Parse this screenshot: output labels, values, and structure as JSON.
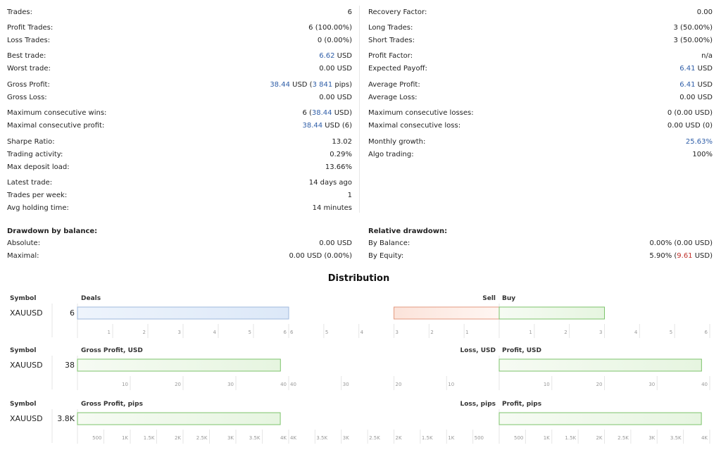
{
  "stats_left": [
    {
      "label": "Trades:",
      "value": [
        {
          "t": "6"
        }
      ]
    },
    {
      "label": "Profit Trades:",
      "value": [
        {
          "t": "6 (100.00%)"
        }
      ]
    },
    {
      "label": "Loss Trades:",
      "value": [
        {
          "t": "0 (0.00%)"
        }
      ]
    },
    {
      "label": "Best trade:",
      "value": [
        {
          "t": "6.62",
          "c": "blue"
        },
        {
          "t": " USD"
        }
      ]
    },
    {
      "label": "Worst trade:",
      "value": [
        {
          "t": "0.00 USD"
        }
      ]
    },
    {
      "label": "Gross Profit:",
      "value": [
        {
          "t": "38.44",
          "c": "blue"
        },
        {
          "t": " USD ("
        },
        {
          "t": "3 841",
          "c": "blue"
        },
        {
          "t": " pips)"
        }
      ]
    },
    {
      "label": "Gross Loss:",
      "value": [
        {
          "t": "0.00 USD"
        }
      ]
    },
    {
      "label": "Maximum consecutive wins:",
      "value": [
        {
          "t": "6 ("
        },
        {
          "t": "38.44",
          "c": "blue"
        },
        {
          "t": " USD)"
        }
      ]
    },
    {
      "label": "Maximal consecutive profit:",
      "value": [
        {
          "t": "38.44",
          "c": "blue"
        },
        {
          "t": " USD (6)"
        }
      ]
    },
    {
      "label": "Sharpe Ratio:",
      "value": [
        {
          "t": "13.02"
        }
      ]
    },
    {
      "label": "Trading activity:",
      "value": [
        {
          "t": "0.29%"
        }
      ]
    },
    {
      "label": "Max deposit load:",
      "value": [
        {
          "t": "13.66%"
        }
      ]
    },
    {
      "label": "Latest trade:",
      "value": [
        {
          "t": "14 days ago"
        }
      ]
    },
    {
      "label": "Trades per week:",
      "value": [
        {
          "t": "1"
        }
      ]
    },
    {
      "label": "Avg holding time:",
      "value": [
        {
          "t": "14 minutes"
        }
      ]
    }
  ],
  "stats_right": [
    {
      "label": "Recovery Factor:",
      "value": [
        {
          "t": "0.00"
        }
      ]
    },
    {
      "label": "Long Trades:",
      "value": [
        {
          "t": "3 (50.00%)"
        }
      ]
    },
    {
      "label": "Short Trades:",
      "value": [
        {
          "t": "3 (50.00%)"
        }
      ]
    },
    {
      "label": "Profit Factor:",
      "value": [
        {
          "t": "n/a"
        }
      ]
    },
    {
      "label": "Expected Payoff:",
      "value": [
        {
          "t": "6.41",
          "c": "blue"
        },
        {
          "t": " USD"
        }
      ]
    },
    {
      "label": "Average Profit:",
      "value": [
        {
          "t": "6.41",
          "c": "blue"
        },
        {
          "t": " USD"
        }
      ]
    },
    {
      "label": "Average Loss:",
      "value": [
        {
          "t": "0.00 USD"
        }
      ]
    },
    {
      "label": "Maximum consecutive losses:",
      "value": [
        {
          "t": "0 (0.00 USD)"
        }
      ]
    },
    {
      "label": "Maximal consecutive loss:",
      "value": [
        {
          "t": "0.00 USD (0)"
        }
      ]
    },
    {
      "label": "Monthly growth:",
      "value": [
        {
          "t": "25.63%",
          "c": "blue"
        }
      ]
    },
    {
      "label": "Algo trading:",
      "value": [
        {
          "t": "100%"
        }
      ]
    }
  ],
  "drawdown_left": {
    "title": "Drawdown by balance:",
    "rows": [
      {
        "label": "Absolute:",
        "value": [
          {
            "t": "0.00 USD"
          }
        ]
      },
      {
        "label": "Maximal:",
        "value": [
          {
            "t": "0.00 USD (0.00%)"
          }
        ]
      }
    ]
  },
  "drawdown_right": {
    "title": "Relative drawdown:",
    "rows": [
      {
        "label": "By Balance:",
        "value": [
          {
            "t": "0.00% (0.00 USD)"
          }
        ]
      },
      {
        "label": "By Equity:",
        "value": [
          {
            "t": "5.90% ("
          },
          {
            "t": "9.61",
            "c": "red"
          },
          {
            "t": " USD)"
          }
        ]
      }
    ]
  },
  "distribution": {
    "title": "Distribution",
    "colors": {
      "blue_fill": "#dce8f8",
      "blue_stroke": "#9fb9dc",
      "green_fill": "#e6f5e0",
      "green_stroke": "#7cc36b",
      "red_fill": "#fbe3da",
      "red_stroke": "#e39a80",
      "grid": "#e6e6e6"
    },
    "blocks": [
      {
        "symbol_header": "Symbol",
        "symbol": "XAUUSD",
        "value_label": "6",
        "left_header": "Deals",
        "mid_left_header": "Sell",
        "mid_right_header": "Buy",
        "main_value": 6,
        "main_max": 6,
        "main_ticks": [
          "1",
          "2",
          "3",
          "4",
          "5",
          "6"
        ],
        "sell_value": 3,
        "sell_ticks": [
          "6",
          "5",
          "4",
          "3",
          "2",
          "1"
        ],
        "buy_value": 3,
        "buy_max": 6,
        "buy_ticks": [
          "1",
          "2",
          "3",
          "4",
          "5",
          "6"
        ]
      },
      {
        "symbol_header": "Symbol",
        "symbol": "XAUUSD",
        "value_label": "38",
        "left_header": "Gross Profit, USD",
        "mid_left_header": "Loss, USD",
        "mid_right_header": "Profit, USD",
        "main_value": 38.44,
        "main_max": 40,
        "main_ticks": [
          "10",
          "20",
          "30",
          "40"
        ],
        "sell_value": 0,
        "sell_ticks": [
          "40",
          "30",
          "20",
          "10"
        ],
        "buy_value": 38.44,
        "buy_max": 40,
        "buy_ticks": [
          "10",
          "20",
          "30",
          "40"
        ]
      },
      {
        "symbol_header": "Symbol",
        "symbol": "XAUUSD",
        "value_label": "3.8K",
        "left_header": "Gross Profit, pips",
        "mid_left_header": "Loss, pips",
        "mid_right_header": "Profit, pips",
        "main_value": 3841,
        "main_max": 4000,
        "main_ticks": [
          "500",
          "1K",
          "1.5K",
          "2K",
          "2.5K",
          "3K",
          "3.5K",
          "4K"
        ],
        "sell_value": 0,
        "sell_ticks": [
          "4K",
          "3.5K",
          "3K",
          "2.5K",
          "2K",
          "1.5K",
          "1K",
          "500"
        ],
        "buy_value": 3841,
        "buy_max": 4000,
        "buy_ticks": [
          "500",
          "1K",
          "1.5K",
          "2K",
          "2.5K",
          "3K",
          "3.5K",
          "4K"
        ]
      }
    ]
  }
}
